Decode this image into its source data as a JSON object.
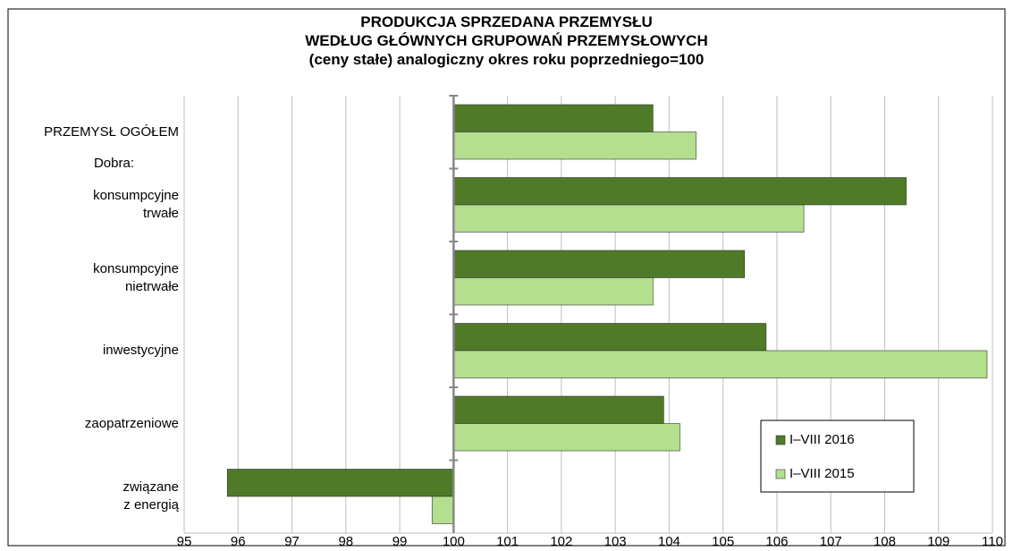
{
  "chart_data": {
    "type": "hbar",
    "title": "PRODUKCJA SPRZEDANA PRZEMYSŁU\nWEDŁUG GŁÓWNYCH GRUPOWAŃ PRZEMYSŁOWYCH\n(ceny stałe)  analogiczny okres roku poprzedniego=100",
    "annotation": "Dobra:",
    "categories": [
      "PRZEMYSŁ OGÓŁEM",
      "konsumpcyjne\ntrwałe",
      "konsumpcyjne\nnietrwałe",
      "inwestycyjne",
      "zaopatrzeniowe",
      "związane\nz energią"
    ],
    "series": [
      {
        "name": "I–VIII 2016",
        "color": "#4f7a28",
        "values": [
          103.7,
          108.4,
          105.4,
          105.8,
          103.9,
          95.8
        ]
      },
      {
        "name": "I–VIII 2015",
        "color": "#b3df8f",
        "values": [
          104.5,
          106.5,
          103.7,
          109.9,
          104.2,
          99.6
        ]
      }
    ],
    "xlim": [
      95,
      110
    ],
    "xticks": [
      95,
      96,
      97,
      98,
      99,
      100,
      101,
      102,
      103,
      104,
      105,
      106,
      107,
      108,
      109,
      110
    ],
    "axis_crosses": 100,
    "grid": true,
    "legend": "lower right"
  }
}
